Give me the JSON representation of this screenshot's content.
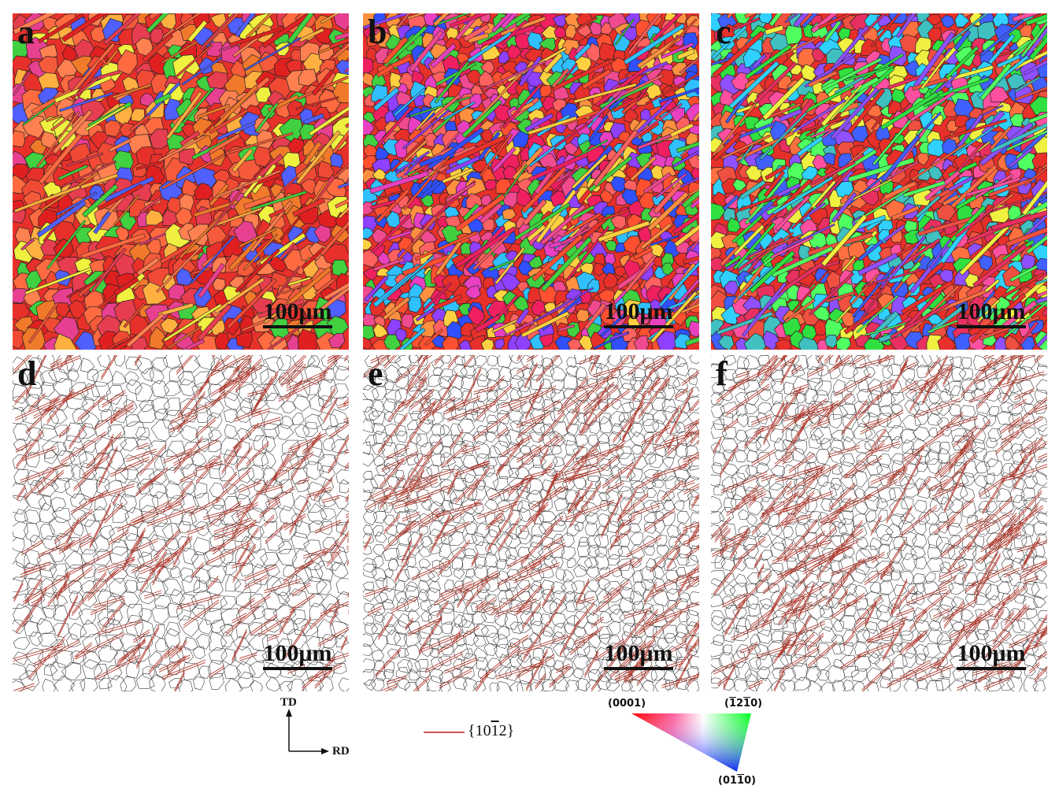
{
  "panels": [
    {
      "letter": "a",
      "type": "ipf",
      "scale": "100μm"
    },
    {
      "letter": "b",
      "type": "ipf",
      "scale": "100μm"
    },
    {
      "letter": "c",
      "type": "ipf",
      "scale": "100μm"
    },
    {
      "letter": "d",
      "type": "boundary",
      "scale": "100μm"
    },
    {
      "letter": "e",
      "type": "boundary",
      "scale": "100μm"
    },
    {
      "letter": "f",
      "type": "boundary",
      "scale": "100μm"
    }
  ],
  "axes": {
    "td": "TD",
    "rd": "RD"
  },
  "twin_legend": {
    "label": "{10‾1̅ 2}",
    "display": "{10",
    "bar_digit": "1",
    "tail": "2}",
    "color": "#c8584a"
  },
  "ipf_key": {
    "top_left": "(0001)",
    "top_right": "(‾12‾10)",
    "bottom": "(01‾10)",
    "top_left_text": "(0001)",
    "top_right_text": "(12 10)",
    "bottom_text": "(0110)"
  },
  "colors": {
    "boundary": "#3a3a3a",
    "twin": "#b03a2e"
  }
}
